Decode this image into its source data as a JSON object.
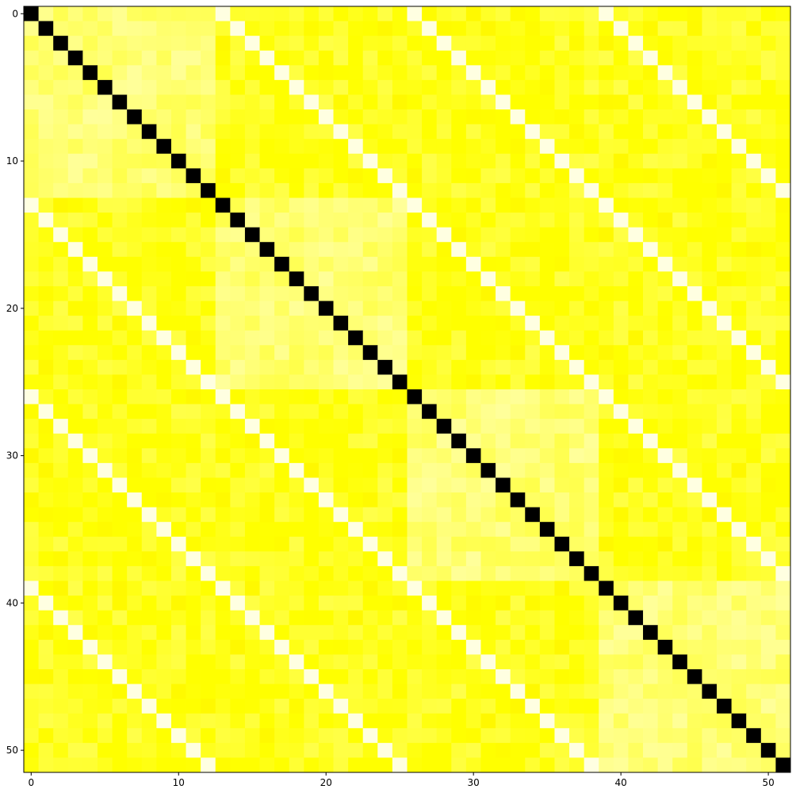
{
  "chart_data": {
    "type": "heatmap",
    "title": "",
    "xlabel": "",
    "ylabel": "",
    "n_rows": 52,
    "n_cols": 52,
    "colormap": "hot",
    "value_range": [
      0,
      1
    ],
    "xlim": [
      -0.5,
      51.5
    ],
    "ylim": [
      51.5,
      -0.5
    ],
    "x_ticks": [
      0,
      10,
      20,
      30,
      40,
      50
    ],
    "y_ticks": [
      0,
      10,
      20,
      30,
      40,
      50
    ],
    "x_tick_labels": [
      "0",
      "10",
      "20",
      "30",
      "40",
      "50"
    ],
    "y_tick_labels": [
      "0",
      "10",
      "20",
      "30",
      "40",
      "50"
    ],
    "block_size": 13,
    "diagonal_value": 0.0,
    "offdiagonal_value_same_position_other_block": 0.97,
    "within_block_value_range": [
      0.82,
      0.9
    ],
    "between_block_value_range": [
      0.72,
      0.82
    ],
    "grid": false,
    "legend": "none",
    "colors": {
      "diagonal": "#000000",
      "periodic_stripe": "#ffffc8",
      "within_block": "#ffff30",
      "between_block": "#ffcc00"
    }
  }
}
